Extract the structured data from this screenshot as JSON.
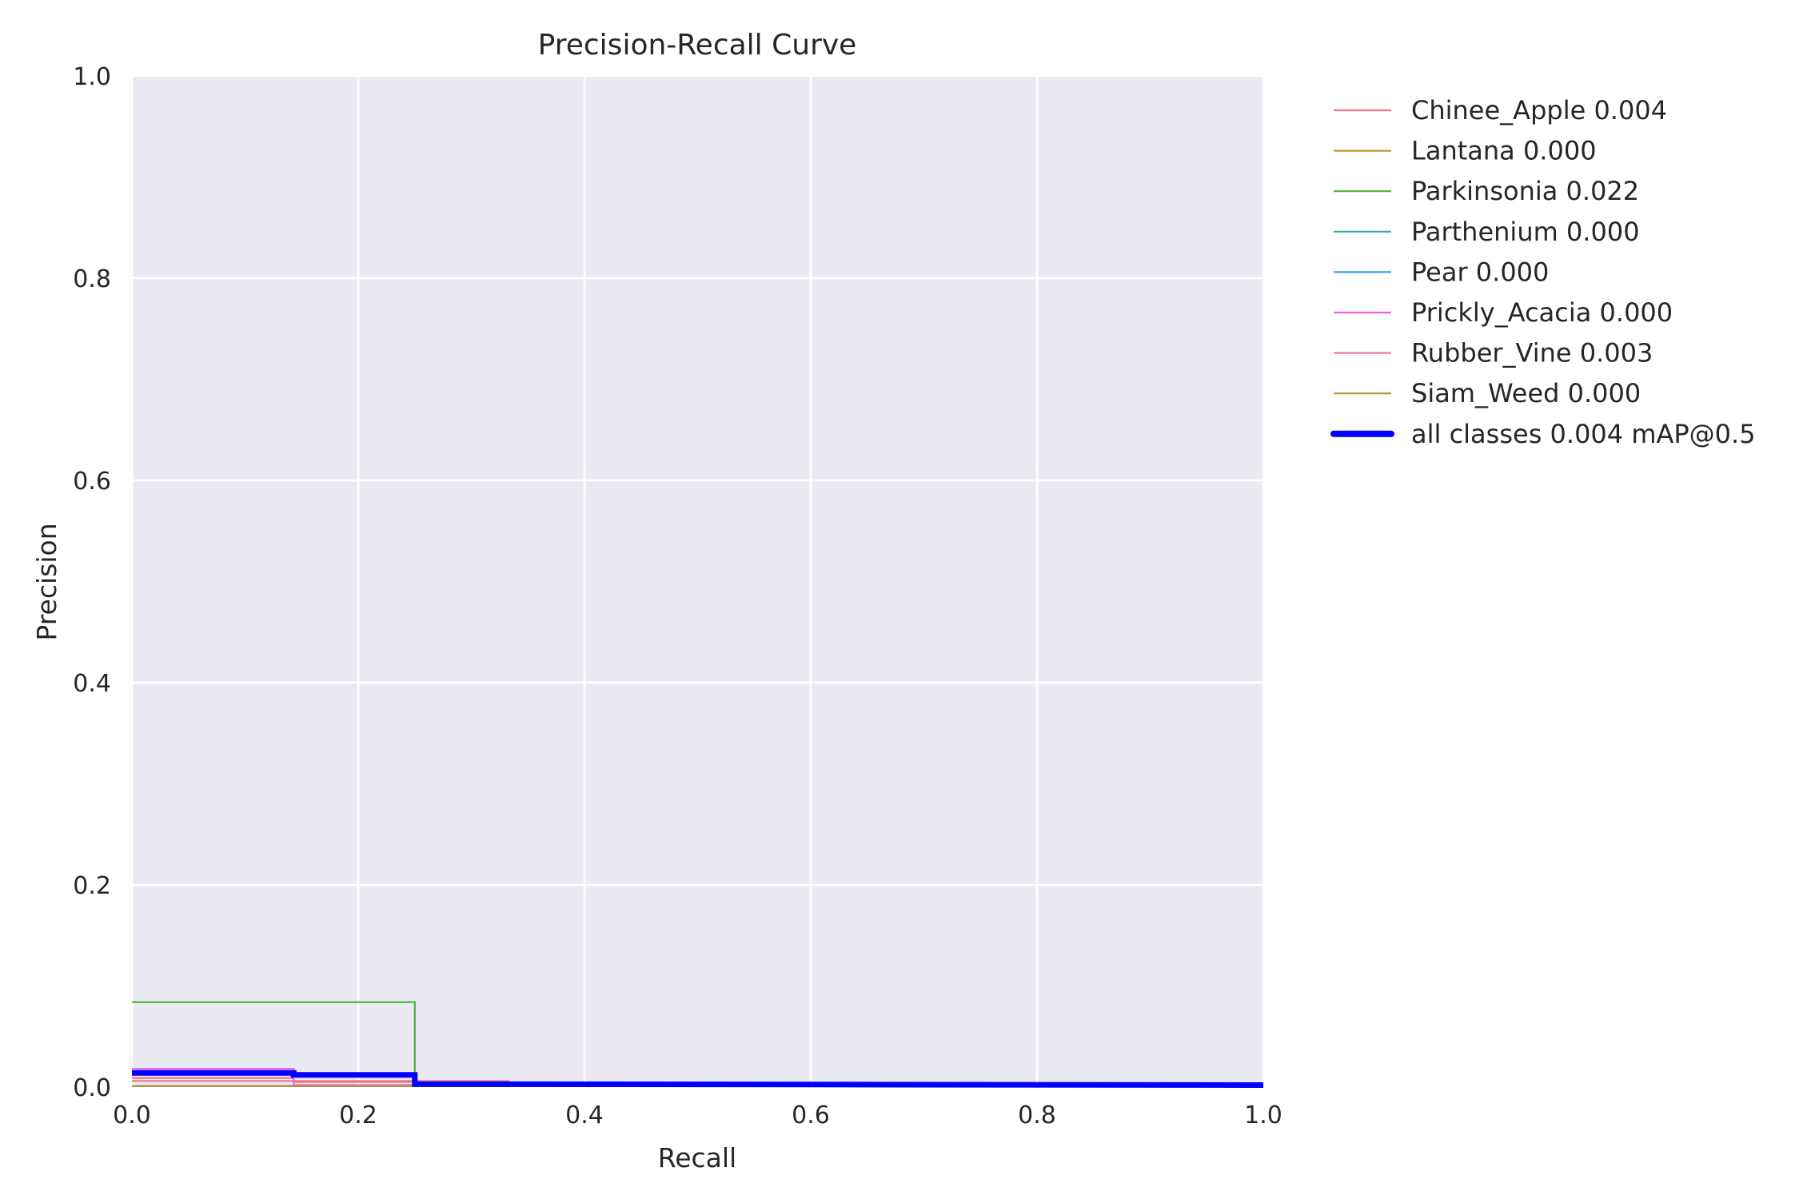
{
  "chart_data": {
    "type": "line",
    "title": "Precision-Recall Curve",
    "xlabel": "Recall",
    "ylabel": "Precision",
    "xlim": [
      0,
      1
    ],
    "ylim": [
      0,
      1
    ],
    "xticks": [
      "0.0",
      "0.2",
      "0.4",
      "0.6",
      "0.8",
      "1.0"
    ],
    "yticks": [
      "0.0",
      "0.2",
      "0.4",
      "0.6",
      "0.8",
      "1.0"
    ],
    "grid": true,
    "legend_position": "outside-right",
    "colors": {
      "background": "#eaeaf2",
      "grid": "#ffffff"
    },
    "series": [
      {
        "name": "Chinee_Apple 0.004",
        "color": "#f77189",
        "linewidth": "thin",
        "x": [
          0,
          0.143,
          0.143,
          0.25,
          0.25,
          1.0
        ],
        "y": [
          0.009,
          0.009,
          0.005,
          0.005,
          0.002,
          0.002
        ]
      },
      {
        "name": "Lantana 0.000",
        "color": "#c39532",
        "linewidth": "thin",
        "x": [
          0,
          1.0
        ],
        "y": [
          0.001,
          0.001
        ]
      },
      {
        "name": "Parkinsonia 0.022",
        "color": "#4fb031",
        "linewidth": "thin",
        "x": [
          0,
          0.25,
          0.25,
          1.0
        ],
        "y": [
          0.084,
          0.084,
          0.003,
          0.003
        ]
      },
      {
        "name": "Parthenium 0.000",
        "color": "#36ada4",
        "linewidth": "thin",
        "x": [
          0,
          1.0
        ],
        "y": [
          0.001,
          0.001
        ]
      },
      {
        "name": "Pear 0.000",
        "color": "#3ba3ec",
        "linewidth": "thin",
        "x": [
          0,
          1.0
        ],
        "y": [
          0.001,
          0.001
        ]
      },
      {
        "name": "Prickly_Acacia 0.000",
        "color": "#f45deb",
        "linewidth": "thin",
        "x": [
          0,
          0.143,
          0.143,
          1.0
        ],
        "y": [
          0.018,
          0.018,
          0.002,
          0.002
        ]
      },
      {
        "name": "Rubber_Vine 0.003",
        "color": "#f37394",
        "linewidth": "thin",
        "x": [
          0,
          0.333,
          0.333,
          1.0
        ],
        "y": [
          0.006,
          0.006,
          0.002,
          0.002
        ]
      },
      {
        "name": "Siam_Weed 0.000",
        "color": "#b3912f",
        "linewidth": "thin",
        "x": [
          0,
          1.0
        ],
        "y": [
          0.001,
          0.001
        ]
      },
      {
        "name": "all classes 0.004 mAP@0.5",
        "color": "#0000ff",
        "linewidth": "thick",
        "x": [
          0,
          0.143,
          0.143,
          0.25,
          0.25,
          1.0
        ],
        "y": [
          0.014,
          0.014,
          0.012,
          0.012,
          0.003,
          0.002
        ]
      }
    ]
  }
}
